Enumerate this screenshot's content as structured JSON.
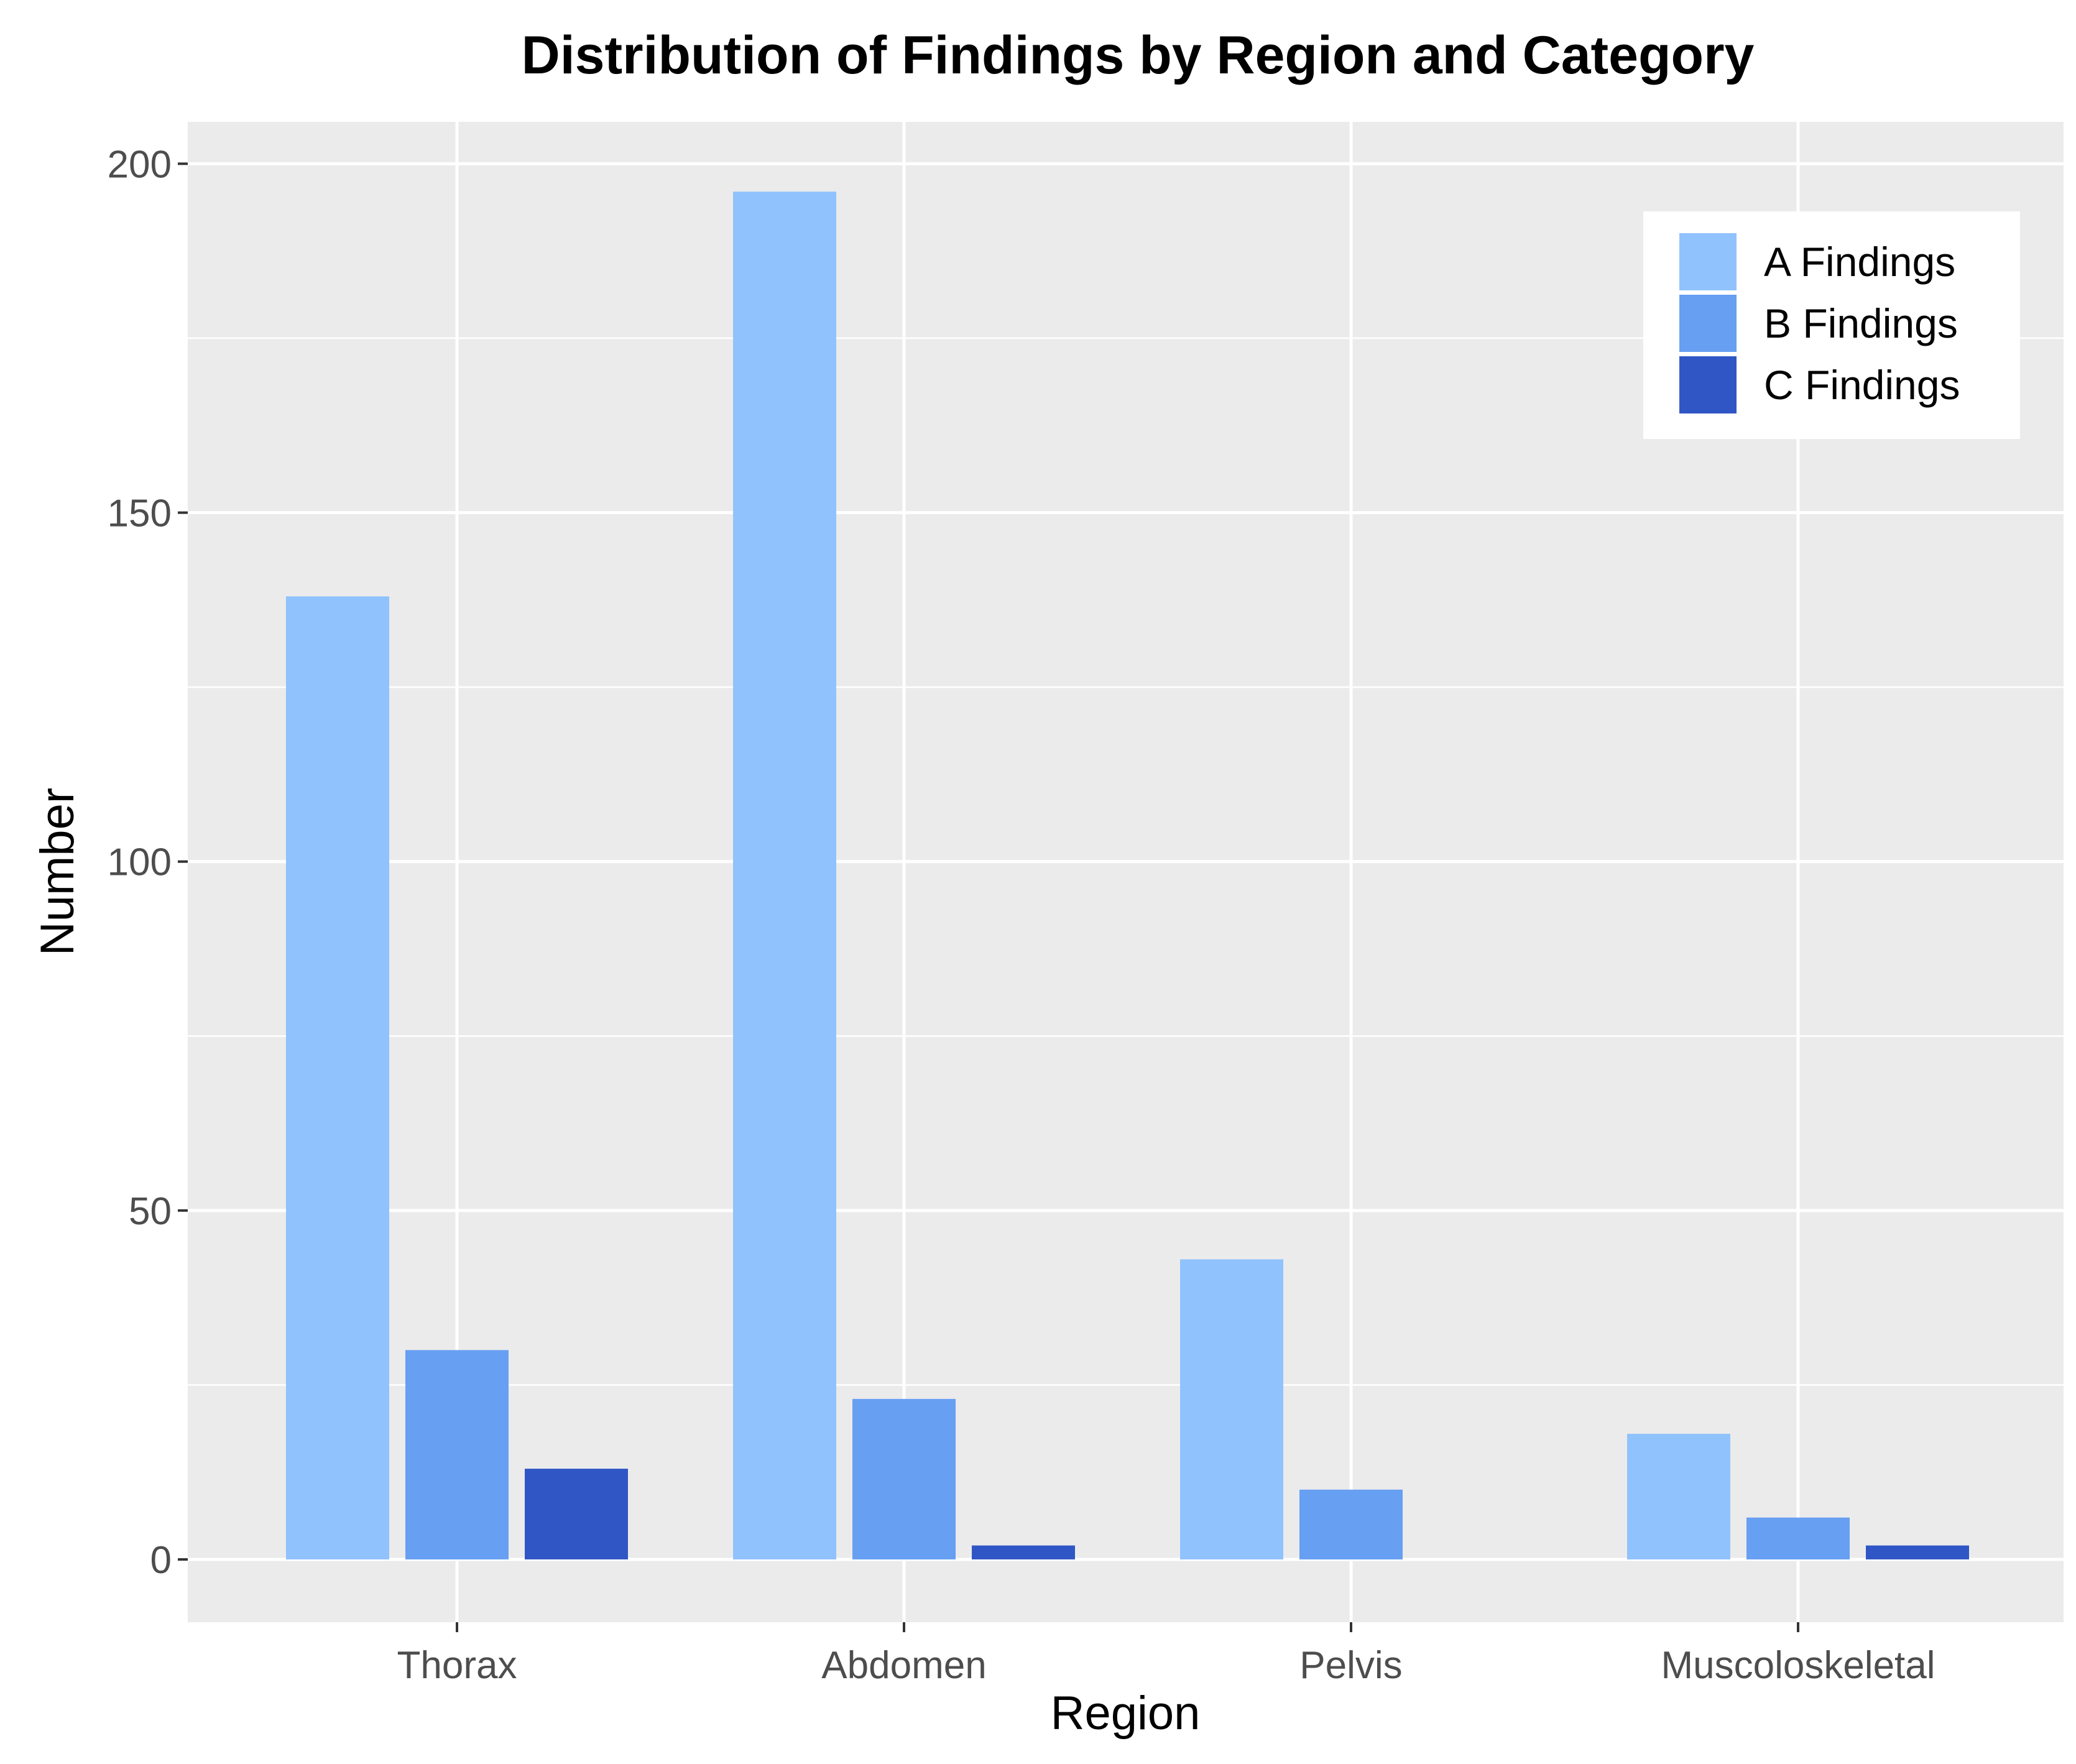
{
  "chart_data": {
    "type": "bar",
    "title": "Distribution of Findings by Region and Category",
    "xlabel": "Region",
    "ylabel": "Number",
    "categories": [
      "Thorax",
      "Abdomen",
      "Pelvis",
      "Muscoloskeletal"
    ],
    "series": [
      {
        "name": "A Findings",
        "color": "#90c2fd",
        "values": [
          138,
          196,
          43,
          18
        ]
      },
      {
        "name": "B Findings",
        "color": "#679ff2",
        "values": [
          30,
          23,
          10,
          6
        ]
      },
      {
        "name": "C Findings",
        "color": "#3056c6",
        "values": [
          13,
          2,
          0,
          2
        ]
      }
    ],
    "ylim": [
      -9,
      206
    ],
    "yticks": [
      0,
      50,
      100,
      150,
      200
    ],
    "y_tick_labels": [
      "0",
      "50",
      "100",
      "150",
      "200"
    ],
    "grid": true,
    "panel_background": "#ebebeb",
    "grid_color": "#ffffff",
    "legend_position": "top-right"
  }
}
